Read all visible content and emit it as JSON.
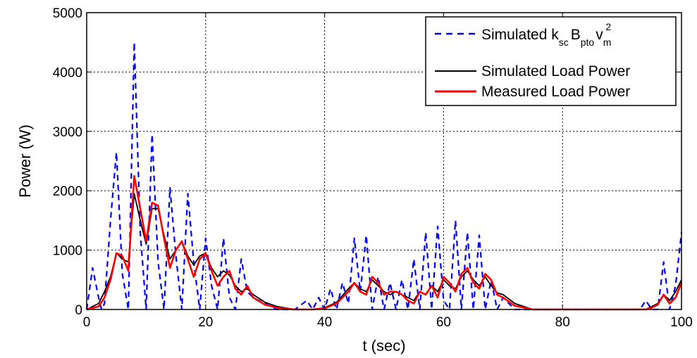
{
  "chart_data": {
    "type": "line",
    "xlabel": "t (sec)",
    "ylabel": "Power (W)",
    "xlim": [
      0,
      100
    ],
    "ylim": [
      0,
      5000
    ],
    "xticks": [
      "0",
      "20",
      "40",
      "60",
      "80",
      "100"
    ],
    "yticks": [
      "0",
      "1000",
      "2000",
      "3000",
      "4000",
      "5000"
    ],
    "grid": true,
    "legend_position": "top-right",
    "legend": {
      "entry1": {
        "main": "Simulated k",
        "sub1": "sc",
        "mid": "B",
        "sub2": "pto",
        "v": "v",
        "sub3": "m",
        "sup": "2"
      },
      "entry2": "Simulated Load Power",
      "entry3": "Measured Load Power"
    },
    "series": [
      {
        "style": "dashed",
        "color": "#0000ff",
        "x": [
          0,
          1,
          2,
          2.5,
          3,
          4,
          5,
          6,
          7,
          8,
          9,
          10,
          11,
          12,
          13,
          14,
          15,
          16,
          17,
          18,
          19,
          20,
          21,
          22,
          23,
          24,
          25,
          26,
          27,
          28,
          30,
          32,
          35,
          37,
          38,
          39,
          40,
          41,
          42,
          43,
          44,
          45,
          46,
          47,
          48,
          49,
          50,
          51,
          52,
          53,
          54,
          55,
          56,
          57,
          58,
          59,
          60,
          61,
          62,
          63,
          64,
          65,
          66,
          67,
          68,
          69,
          70,
          72,
          75,
          80,
          85,
          90,
          93,
          94,
          95,
          96,
          97,
          98,
          99,
          100
        ],
        "y": [
          0,
          700,
          200,
          0,
          100,
          1500,
          2650,
          600,
          0,
          4500,
          1300,
          0,
          2950,
          800,
          0,
          2050,
          900,
          0,
          1950,
          800,
          0,
          1200,
          400,
          0,
          1200,
          200,
          0,
          850,
          300,
          200,
          100,
          0,
          0,
          150,
          0,
          200,
          0,
          350,
          0,
          450,
          100,
          1200,
          300,
          1250,
          0,
          550,
          0,
          450,
          0,
          500,
          0,
          850,
          0,
          1300,
          0,
          1400,
          150,
          0,
          1500,
          0,
          1300,
          0,
          1250,
          0,
          500,
          0,
          200,
          0,
          0,
          0,
          0,
          0,
          0,
          150,
          0,
          0,
          800,
          0,
          400,
          1300
        ]
      },
      {
        "style": "solid",
        "color": "#000000",
        "x": [
          0,
          2,
          3,
          4,
          5,
          6,
          7,
          8,
          9,
          10,
          11,
          12,
          13,
          14,
          15,
          16,
          17,
          18,
          19,
          20,
          21,
          22,
          23,
          24,
          25,
          26,
          27,
          28,
          30,
          32,
          35,
          38,
          40,
          42,
          44,
          45,
          46,
          47,
          48,
          49,
          50,
          51,
          52,
          53,
          54,
          55,
          56,
          57,
          58,
          59,
          60,
          61,
          62,
          63,
          64,
          65,
          66,
          67,
          68,
          69,
          70,
          72,
          75,
          80,
          85,
          90,
          94,
          95,
          96,
          97,
          98,
          99,
          100
        ],
        "y": [
          0,
          100,
          300,
          550,
          950,
          850,
          800,
          1950,
          1500,
          1100,
          1700,
          1700,
          1250,
          850,
          1000,
          1150,
          900,
          750,
          900,
          950,
          700,
          550,
          650,
          580,
          400,
          300,
          350,
          250,
          120,
          50,
          0,
          0,
          30,
          120,
          350,
          450,
          350,
          300,
          500,
          400,
          300,
          250,
          300,
          250,
          200,
          150,
          300,
          250,
          400,
          300,
          500,
          400,
          350,
          550,
          650,
          500,
          400,
          550,
          400,
          280,
          250,
          100,
          0,
          0,
          0,
          0,
          0,
          50,
          100,
          250,
          150,
          300,
          500
        ]
      },
      {
        "style": "solid",
        "color": "#ff0000",
        "x": [
          0,
          2,
          3,
          4,
          5,
          6,
          7,
          8,
          9,
          10,
          11,
          12,
          13,
          14,
          15,
          16,
          17,
          18,
          19,
          20,
          21,
          22,
          23,
          24,
          25,
          26,
          27,
          28,
          30,
          32,
          35,
          38,
          40,
          42,
          44,
          45,
          46,
          47,
          48,
          49,
          50,
          51,
          52,
          53,
          54,
          55,
          56,
          57,
          58,
          59,
          60,
          61,
          62,
          63,
          64,
          65,
          66,
          67,
          68,
          69,
          70,
          72,
          75,
          80,
          85,
          90,
          94,
          95,
          96,
          97,
          98,
          99,
          100
        ],
        "y": [
          0,
          50,
          200,
          500,
          950,
          900,
          650,
          2250,
          1700,
          1150,
          1800,
          1750,
          1200,
          700,
          1000,
          1150,
          850,
          550,
          850,
          950,
          650,
          400,
          550,
          650,
          350,
          250,
          400,
          200,
          80,
          30,
          0,
          0,
          20,
          100,
          300,
          450,
          300,
          250,
          550,
          450,
          250,
          300,
          300,
          250,
          150,
          100,
          300,
          250,
          400,
          200,
          550,
          450,
          300,
          600,
          700,
          450,
          350,
          600,
          500,
          250,
          200,
          60,
          0,
          0,
          0,
          0,
          0,
          30,
          80,
          250,
          100,
          200,
          450
        ]
      }
    ]
  }
}
